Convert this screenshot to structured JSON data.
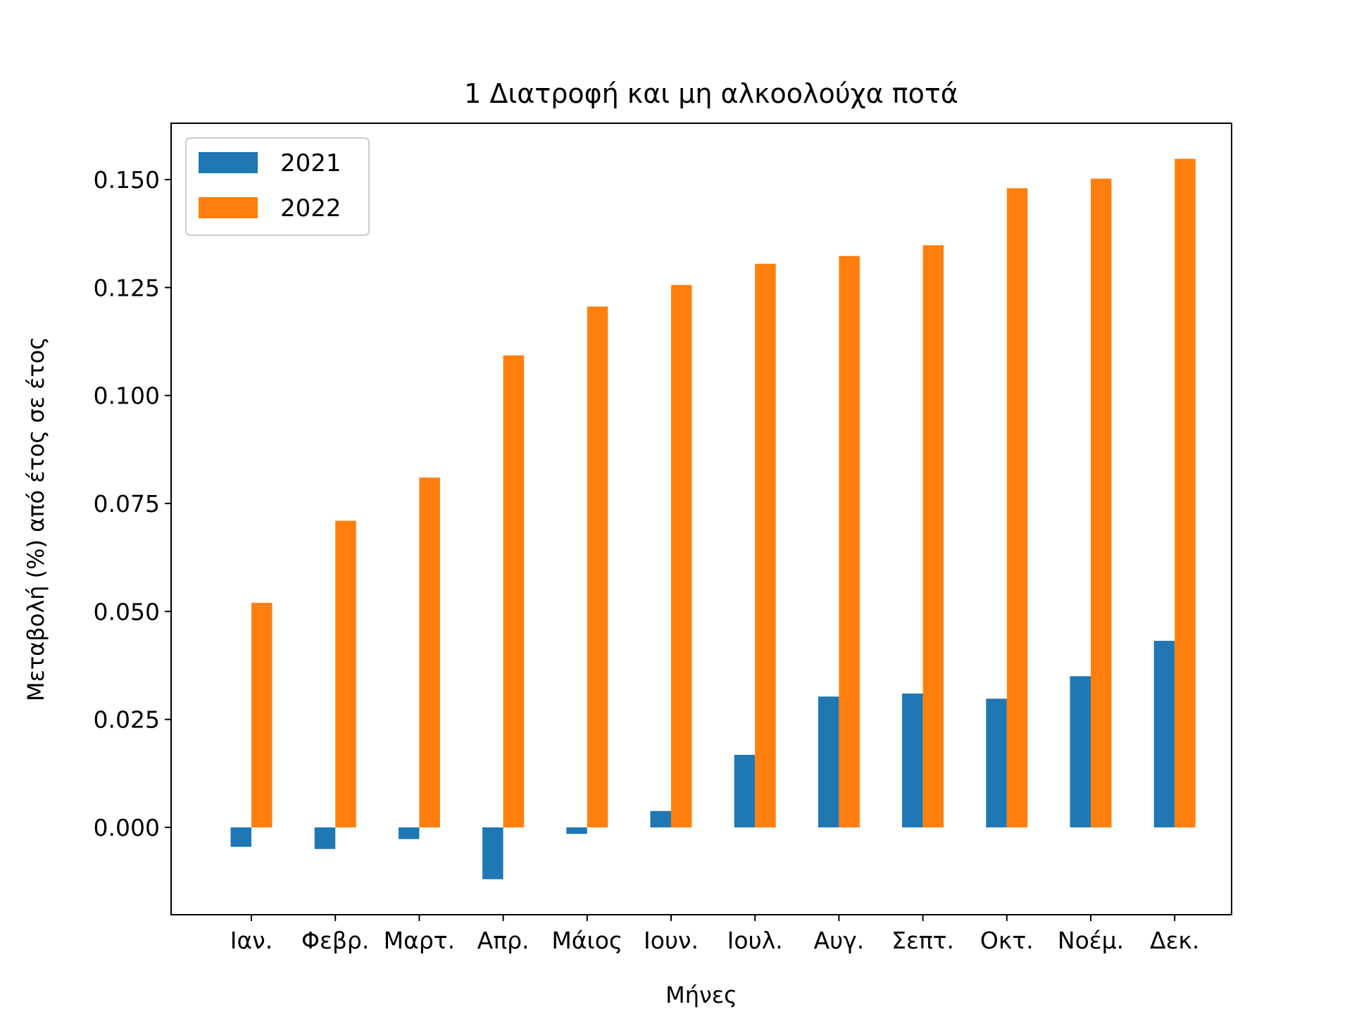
{
  "chart_data": {
    "type": "bar",
    "title": "1  Διατροφή και μη αλκοολούχα ποτά",
    "xlabel": "Μήνες",
    "ylabel": "Μεταβολή (%) από έτος σε έτος",
    "categories": [
      "Ιαν.",
      "Φεβρ.",
      "Μαρτ.",
      "Απρ.",
      "Μάιος",
      "Ιουν.",
      "Ιουλ.",
      "Αυγ.",
      "Σεπτ.",
      "Οκτ.",
      "Νοέμ.",
      "Δεκ."
    ],
    "series": [
      {
        "name": "2021",
        "color": "#1f77b4",
        "values": [
          -0.0045,
          -0.005,
          -0.0027,
          -0.012,
          -0.0015,
          0.0038,
          0.0168,
          0.0303,
          0.031,
          0.0298,
          0.035,
          0.0432
        ]
      },
      {
        "name": "2022",
        "color": "#ff7f0e",
        "values": [
          0.052,
          0.071,
          0.081,
          0.1093,
          0.1206,
          0.1256,
          0.1305,
          0.1323,
          0.1348,
          0.148,
          0.1502,
          0.1548
        ]
      }
    ],
    "yticks": [
      "0.000",
      "0.025",
      "0.050",
      "0.075",
      "0.100",
      "0.125",
      "0.150"
    ],
    "ylim": [
      -0.02,
      0.163
    ],
    "grid": false,
    "legend": "upper-left"
  }
}
